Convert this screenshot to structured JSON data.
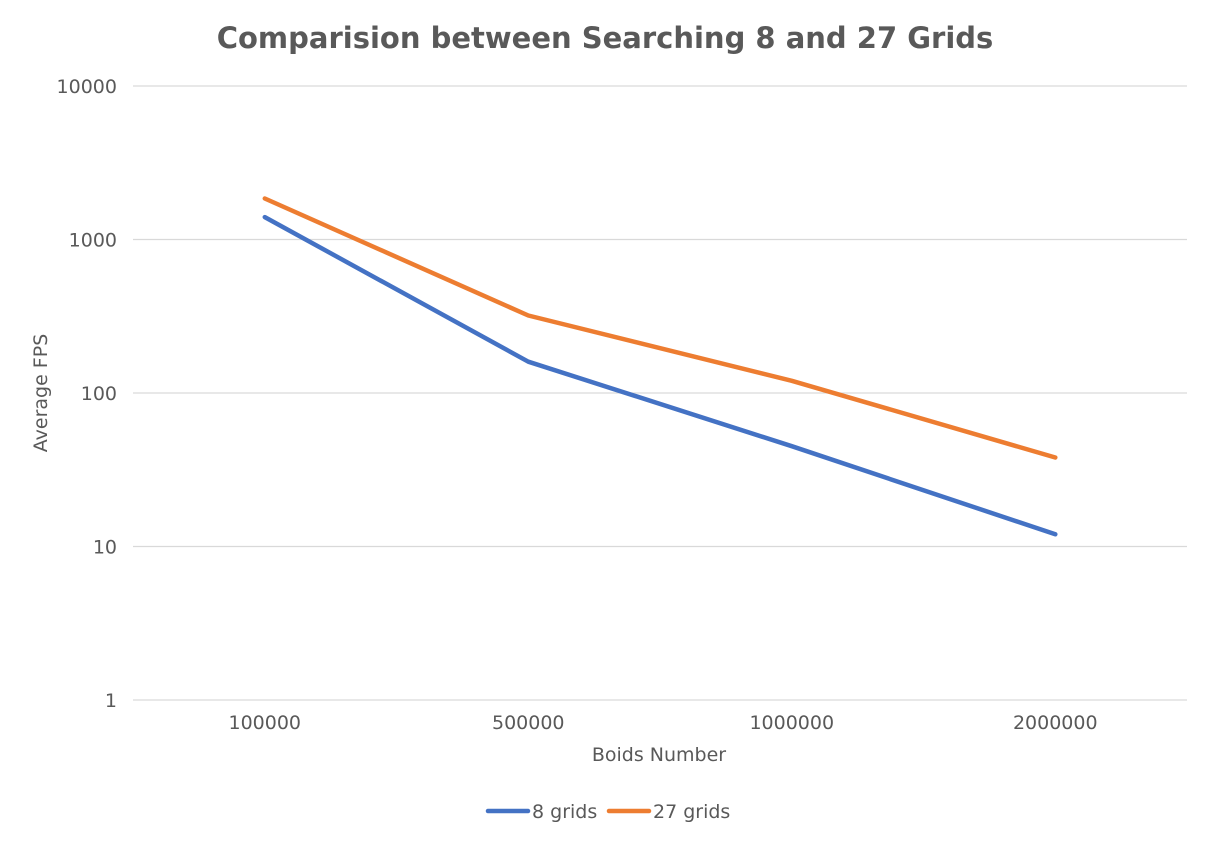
{
  "chart_data": {
    "type": "line",
    "title": "Comparision between Searching 8 and 27 Grids",
    "xlabel": "Boids Number",
    "ylabel": "Average FPS",
    "categories": [
      "100000",
      "500000",
      "1000000",
      "2000000"
    ],
    "y_scale": "log",
    "ylim": [
      1,
      10000
    ],
    "y_ticks": [
      "1",
      "10",
      "100",
      "1000",
      "10000"
    ],
    "grid": true,
    "legend_position": "bottom",
    "series": [
      {
        "name": "8 grids",
        "color": "#4472c4",
        "values": [
          1400,
          160,
          45,
          12
        ]
      },
      {
        "name": "27 grids",
        "color": "#ed7d31",
        "values": [
          1850,
          320,
          120,
          38
        ]
      }
    ]
  }
}
